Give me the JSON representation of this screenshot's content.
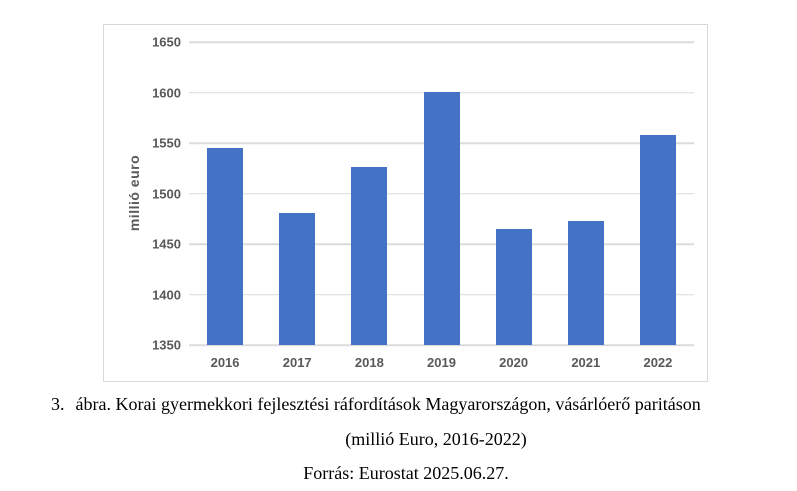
{
  "chart_data": {
    "type": "bar",
    "categories": [
      "2016",
      "2017",
      "2018",
      "2019",
      "2020",
      "2021",
      "2022"
    ],
    "values": [
      1545,
      1481,
      1526,
      1601,
      1465,
      1473,
      1558
    ],
    "title": "",
    "xlabel": "",
    "ylabel": "millió euro",
    "ylim": [
      1350,
      1650
    ],
    "yticks": [
      1350,
      1400,
      1450,
      1500,
      1550,
      1600,
      1650
    ],
    "grid": true,
    "legend": false,
    "bar_color": "#4472C4",
    "gridline_color": "#dcdcdc",
    "axis_label_color": "#595959",
    "frame_border_color": "#d8d8d8"
  },
  "caption": {
    "number": "3.",
    "line1": "ábra. Korai gyermekkori fejlesztési ráfordítások Magyarországon, vásárlóerő paritáson",
    "line2": "(millió Euro, 2016-2022)",
    "line3": "Forrás: Eurostat 2025.06.27."
  }
}
